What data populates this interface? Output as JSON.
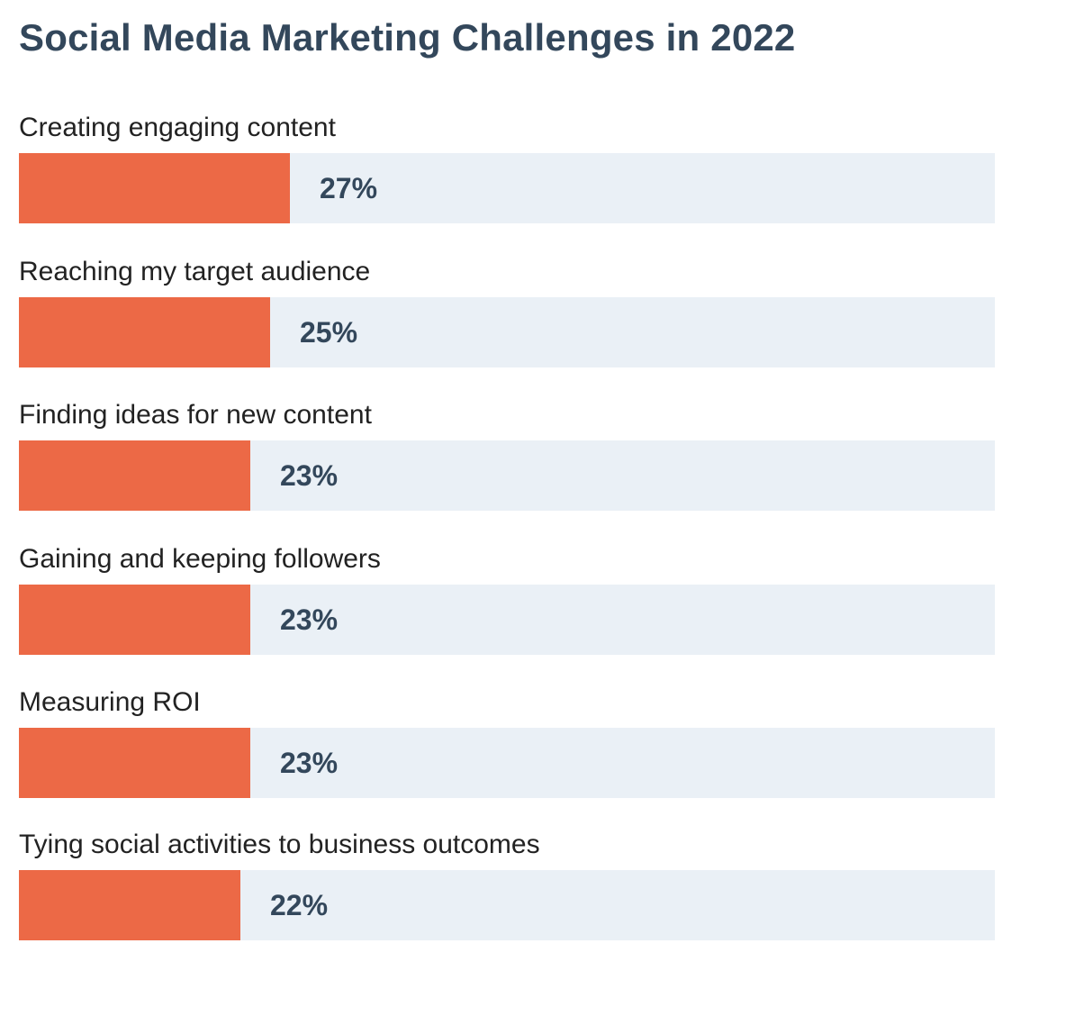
{
  "chart_data": {
    "type": "bar",
    "orientation": "horizontal",
    "title": "Social Media Marketing Challenges in 2022",
    "categories": [
      "Creating engaging content",
      "Reaching my target audience",
      "Finding ideas for new content",
      "Gaining and keeping followers",
      "Measuring ROI",
      "Tying social activities to business outcomes"
    ],
    "values": [
      27,
      25,
      23,
      23,
      23,
      22
    ],
    "value_labels": [
      "27%",
      "25%",
      "23%",
      "23%",
      "23%",
      "22%"
    ],
    "xlim": [
      0,
      100
    ],
    "grid": false,
    "colors": {
      "bar": "#ec6946",
      "track": "#eaf0f6",
      "title": "#33475b",
      "value_text": "#33475b",
      "label_text": "#222222"
    }
  }
}
